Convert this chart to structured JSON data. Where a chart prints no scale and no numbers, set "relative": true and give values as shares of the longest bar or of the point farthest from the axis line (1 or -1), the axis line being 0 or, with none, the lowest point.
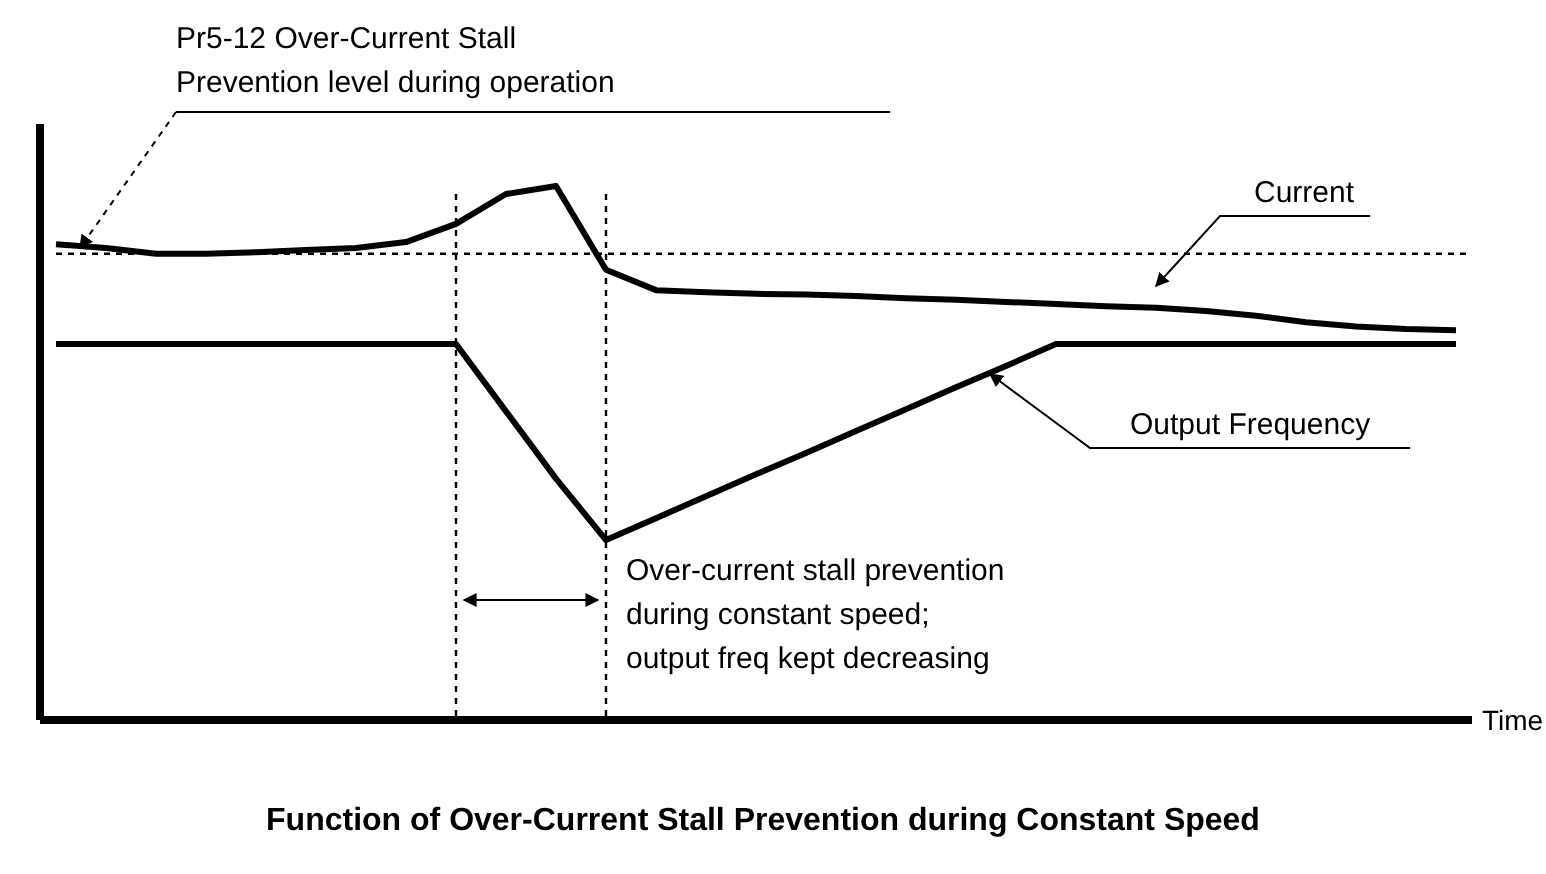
{
  "chart_data": {
    "type": "line",
    "title": "Function of Over-Current Stall Prevention during Constant Speed",
    "xlabel": "Time",
    "relative": true,
    "categories": [
      null,
      null,
      null,
      null,
      null,
      null,
      null,
      null,
      null,
      null,
      null,
      null,
      null,
      null,
      null,
      null,
      null,
      null,
      null,
      null,
      null,
      null,
      null,
      null,
      null,
      null,
      null,
      null,
      null
    ],
    "series": [
      {
        "color": "#000000",
        "values": [
          0.891,
          0.884,
          0.873,
          0.873,
          0.876,
          0.88,
          0.884,
          0.895,
          0.929,
          0.985,
          1.0,
          0.843,
          0.805,
          0.801,
          0.798,
          0.797,
          0.794,
          0.79,
          0.787,
          0.783,
          0.779,
          0.775,
          0.772,
          0.766,
          0.757,
          0.745,
          0.737,
          0.732,
          0.73
        ]
      },
      {
        "color": "#000000",
        "values": [
          0.704,
          0.704,
          0.704,
          0.704,
          0.704,
          0.704,
          0.704,
          0.704,
          0.704,
          0.578,
          0.452,
          0.337,
          0.378,
          0.419,
          0.46,
          0.5,
          0.541,
          0.582,
          0.623,
          0.663,
          0.704,
          0.704,
          0.704,
          0.704,
          0.704,
          0.704,
          0.704,
          0.704,
          0.704
        ]
      }
    ],
    "ref_lines": [
      {
        "axis": "y",
        "value": 0.873,
        "line_style": "dashed",
        "label": "Pr5-12 Over-Current Stall\nPrevention level during operation"
      }
    ],
    "annotations": [
      "Current",
      "Output Frequency",
      "Over-current stall prevention\nduring constant speed;\noutput freq kept decreasing"
    ]
  }
}
